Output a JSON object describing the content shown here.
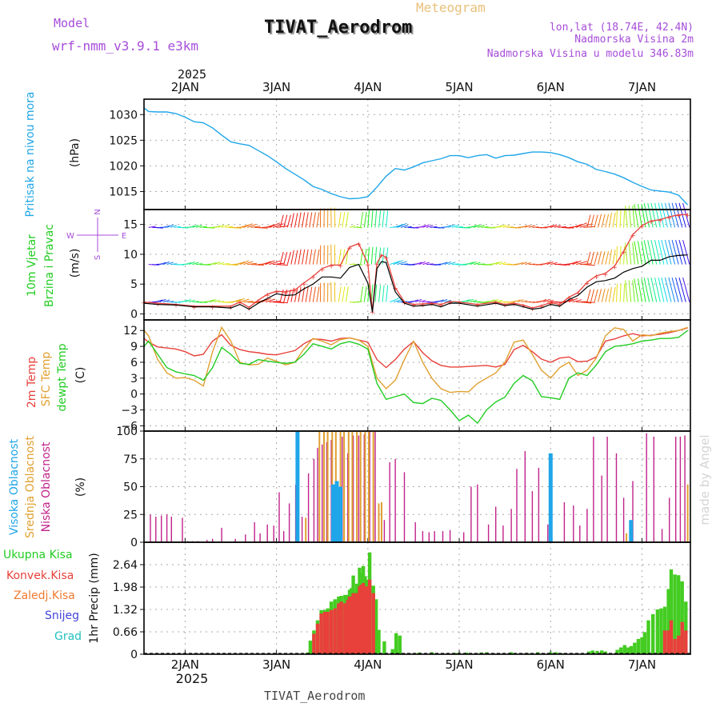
{
  "header": {
    "model_label": "Model",
    "model_name": "wrf-nmm_v3.9.1  e3km",
    "meteogram": "Meteogram",
    "station": "TIVAT_Aerodrom",
    "lonlat": "lon,lat (18.74E, 42.4N)",
    "elevation": "Nadmorska Visina 2m",
    "model_elevation": "Nadmorska Visina u modelu 346.83m",
    "footer_station": "TIVAT_Aerodrom",
    "watermark": "made by Angel"
  },
  "colors": {
    "pressure": "#1fa6e8",
    "temp2m": "#e8403a",
    "sfc": "#e0a030",
    "dew": "#22cc22",
    "cloud_high": "#1fa6e8",
    "cloud_mid": "#e0a030",
    "cloud_low": "#c0238a",
    "precip_total": "#44cc22",
    "precip_conv": "#e8403a",
    "wind_speed": "#000000",
    "purple": "#a64dd9"
  },
  "time_axis": {
    "year": "2025",
    "ticks": [
      "2JAN",
      "3JAN",
      "4JAN",
      "5JAN",
      "6JAN",
      "7JAN"
    ]
  },
  "chart_data": [
    {
      "type": "line",
      "title": "Pritisak na nivou mora",
      "ylabel": "(hPa)",
      "ylim": [
        1011.5,
        1033.0
      ],
      "yticks": [
        1015,
        1020,
        1025,
        1030
      ],
      "x_days": [
        1.55,
        1.6,
        1.7,
        1.8,
        1.9,
        2.0,
        2.1,
        2.2,
        2.3,
        2.4,
        2.5,
        2.6,
        2.7,
        2.8,
        2.9,
        3.0,
        3.1,
        3.2,
        3.3,
        3.4,
        3.5,
        3.6,
        3.7,
        3.8,
        3.9,
        4.0,
        4.1,
        4.2,
        4.3,
        4.4,
        4.5,
        4.6,
        4.7,
        4.8,
        4.9,
        5.0,
        5.1,
        5.2,
        5.3,
        5.4,
        5.5,
        5.6,
        5.7,
        5.8,
        5.9,
        6.0,
        6.1,
        6.2,
        6.3,
        6.4,
        6.5,
        6.6,
        6.7,
        6.8,
        6.9,
        7.0,
        7.1,
        7.2,
        7.3,
        7.4,
        7.5
      ],
      "values": [
        1031.3,
        1030.6,
        1030.5,
        1030.5,
        1030.2,
        1029.5,
        1028.6,
        1028.4,
        1027.4,
        1026.0,
        1024.7,
        1024.3,
        1024.0,
        1023.0,
        1022.0,
        1020.8,
        1019.5,
        1018.4,
        1017.3,
        1016.0,
        1015.4,
        1014.6,
        1014.0,
        1013.6,
        1013.7,
        1014.0,
        1015.9,
        1018.0,
        1019.5,
        1019.2,
        1019.8,
        1020.6,
        1021.0,
        1021.4,
        1022.0,
        1022.0,
        1021.6,
        1022.0,
        1022.2,
        1021.5,
        1022.0,
        1022.1,
        1022.4,
        1022.7,
        1022.7,
        1022.6,
        1022.2,
        1021.6,
        1020.8,
        1020.3,
        1019.3,
        1018.9,
        1018.4,
        1017.7,
        1016.8,
        1016.0,
        1015.3,
        1015.1,
        1014.9,
        1014.3,
        1012.4
      ]
    },
    {
      "type": "line",
      "title": "10m Vjetar",
      "subtitle": "Brzina i Pravac",
      "ylabel": "(m/s)",
      "ylim": [
        -1,
        17.5
      ],
      "yticks": [
        0,
        5,
        10,
        15
      ],
      "compass": {
        "n": "N",
        "s": "S",
        "e": "E",
        "w": "W"
      },
      "x_days": [
        1.55,
        1.7,
        1.9,
        2.1,
        2.3,
        2.5,
        2.6,
        2.7,
        2.8,
        2.9,
        3.0,
        3.1,
        3.2,
        3.3,
        3.4,
        3.5,
        3.6,
        3.7,
        3.8,
        3.9,
        4.0,
        4.05,
        4.1,
        4.15,
        4.2,
        4.3,
        4.4,
        4.5,
        4.6,
        4.7,
        4.8,
        4.9,
        5.0,
        5.2,
        5.4,
        5.5,
        5.6,
        5.7,
        5.8,
        5.9,
        6.0,
        6.1,
        6.2,
        6.3,
        6.4,
        6.5,
        6.6,
        6.7,
        6.8,
        6.9,
        7.0,
        7.1,
        7.2,
        7.3,
        7.4,
        7.5
      ],
      "speed": [
        1.8,
        1.6,
        1.5,
        1.2,
        1.2,
        1.0,
        1.6,
        0.8,
        1.8,
        2.6,
        3.4,
        3.1,
        3.2,
        4.2,
        5.0,
        6.2,
        6.2,
        6.0,
        7.8,
        8.3,
        5.2,
        0.3,
        7.6,
        8.8,
        8.6,
        3.7,
        1.8,
        1.3,
        1.4,
        1.6,
        1.2,
        1.8,
        1.8,
        1.3,
        1.8,
        1.4,
        1.6,
        1.2,
        0.8,
        1.0,
        1.6,
        1.3,
        2.4,
        3.1,
        4.5,
        5.4,
        5.6,
        6.0,
        7.0,
        7.6,
        8.0,
        9.0,
        9.0,
        9.6,
        9.8,
        9.9
      ],
      "gust": [
        2.0,
        1.8,
        1.6,
        1.3,
        1.3,
        1.3,
        2.0,
        1.1,
        2.3,
        3.3,
        3.8,
        3.7,
        4.0,
        5.2,
        6.3,
        7.6,
        8.2,
        8.2,
        11.2,
        11.8,
        8.4,
        0.5,
        8.5,
        9.9,
        9.5,
        4.4,
        2.0,
        1.6,
        1.7,
        1.8,
        1.6,
        2.1,
        2.0,
        1.6,
        2.0,
        1.6,
        1.8,
        1.5,
        1.0,
        1.4,
        1.9,
        1.6,
        2.8,
        3.6,
        5.3,
        6.4,
        6.8,
        8.0,
        10.5,
        13.3,
        14.8,
        15.6,
        15.8,
        16.3,
        16.6,
        16.7
      ]
    },
    {
      "type": "line",
      "title": "2m Temp / SFC Temp / dewpt Temp",
      "ylabel": "(C)",
      "ylim": [
        -7,
        14
      ],
      "yticks": [
        -6,
        -3,
        0,
        3,
        6,
        9,
        12
      ],
      "x_days": [
        1.55,
        1.6,
        1.7,
        1.8,
        1.9,
        2.0,
        2.1,
        2.2,
        2.3,
        2.4,
        2.5,
        2.6,
        2.7,
        2.8,
        2.9,
        3.0,
        3.1,
        3.2,
        3.3,
        3.4,
        3.5,
        3.6,
        3.7,
        3.8,
        3.9,
        4.0,
        4.1,
        4.2,
        4.3,
        4.4,
        4.5,
        4.6,
        4.7,
        4.8,
        4.9,
        5.0,
        5.1,
        5.2,
        5.3,
        5.4,
        5.5,
        5.6,
        5.7,
        5.8,
        5.9,
        6.0,
        6.1,
        6.2,
        6.3,
        6.4,
        6.5,
        6.6,
        6.7,
        6.8,
        6.9,
        7.0,
        7.1,
        7.2,
        7.3,
        7.4,
        7.5
      ],
      "series": [
        {
          "name": "2m Temp",
          "values": [
            10.5,
            9.8,
            8.9,
            8.7,
            8.5,
            8.0,
            7.2,
            7.5,
            10.0,
            11.2,
            9.2,
            8.4,
            8.0,
            7.8,
            7.5,
            7.4,
            7.8,
            8.2,
            9.5,
            10.4,
            10.3,
            10.0,
            10.5,
            10.6,
            10.2,
            9.8,
            6.5,
            5.0,
            6.5,
            8.5,
            9.9,
            7.8,
            6.3,
            5.4,
            5.1,
            5.1,
            5.2,
            5.3,
            5.4,
            5.1,
            5.6,
            8.4,
            9.2,
            8.0,
            6.6,
            6.0,
            6.8,
            7.0,
            6.1,
            6.2,
            7.0,
            10.0,
            10.4,
            11.0,
            11.4,
            11.0,
            11.1,
            11.3,
            11.6,
            12.0,
            12.5
          ]
        },
        {
          "name": "SFC Temp",
          "values": [
            12.0,
            11.0,
            6.5,
            4.0,
            3.0,
            3.1,
            2.6,
            1.5,
            8.0,
            12.6,
            10.0,
            6.0,
            5.5,
            5.6,
            6.8,
            6.2,
            5.5,
            6.0,
            8.5,
            10.5,
            10.0,
            9.3,
            10.3,
            10.6,
            10.2,
            9.0,
            3.0,
            1.0,
            2.6,
            6.5,
            10.0,
            6.0,
            3.0,
            1.0,
            0.3,
            0.5,
            0.4,
            2.0,
            3.0,
            4.0,
            6.0,
            9.8,
            10.2,
            7.5,
            4.5,
            3.0,
            5.0,
            6.0,
            3.5,
            4.5,
            6.8,
            11.0,
            12.5,
            12.2,
            10.0,
            11.2,
            11.0,
            11.5,
            11.8,
            12.0,
            12.6
          ]
        },
        {
          "name": "dewpt Temp",
          "values": [
            9.0,
            10.0,
            7.5,
            5.0,
            4.2,
            3.8,
            3.5,
            2.6,
            5.0,
            8.8,
            7.5,
            5.8,
            5.6,
            6.5,
            6.2,
            6.0,
            5.8,
            6.0,
            7.5,
            9.5,
            9.0,
            8.5,
            9.5,
            9.9,
            9.4,
            8.5,
            2.0,
            -1.0,
            -0.5,
            0.0,
            -1.6,
            -1.8,
            -0.8,
            -1.2,
            -3.0,
            -5.0,
            -4.0,
            -5.5,
            -3.0,
            -1.5,
            -0.6,
            2.0,
            3.5,
            2.5,
            -0.5,
            -0.7,
            -1.0,
            3.0,
            4.0,
            3.5,
            5.5,
            8.0,
            9.0,
            9.2,
            9.5,
            10.0,
            10.2,
            10.5,
            10.5,
            10.7,
            12.0
          ]
        }
      ]
    },
    {
      "type": "bar",
      "title": "Visoka Oblacnost / Srednja Oblacnost / Niska Oblacnost",
      "ylabel": "(%)",
      "ylim": [
        0,
        100
      ],
      "yticks": [
        0,
        25,
        50,
        75,
        100
      ],
      "series": [
        {
          "name": "Visoka Oblacnost",
          "x_days": [
            3.23,
            3.62,
            3.66,
            3.7,
            6.0,
            6.88
          ],
          "values": [
            100,
            52,
            55,
            50,
            80,
            20
          ]
        },
        {
          "name": "Srednja Oblacnost",
          "x_days": [
            3.32,
            3.47,
            3.52,
            3.56,
            3.61,
            3.65,
            3.7,
            3.74,
            3.79,
            3.83,
            3.88,
            3.92,
            3.97,
            4.01,
            4.06,
            4.12,
            4.15,
            6.83,
            7.5
          ],
          "values": [
            22,
            100,
            100,
            100,
            100,
            100,
            100,
            100,
            100,
            100,
            100,
            100,
            100,
            100,
            100,
            35,
            36,
            8,
            52
          ]
        },
        {
          "name": "Niska Oblacnost",
          "x_days": [
            1.62,
            1.68,
            1.74,
            1.8,
            1.85,
            1.97,
            2.03,
            2.08,
            2.14,
            2.24,
            2.3,
            2.4,
            2.55,
            2.66,
            2.76,
            2.82,
            2.9,
            2.97,
            3.03,
            3.08,
            3.14,
            3.21,
            3.28,
            3.35,
            3.41,
            3.45,
            3.5,
            3.55,
            3.6,
            3.65,
            3.72,
            3.78,
            3.84,
            3.9,
            3.96,
            4.02,
            4.08,
            4.18,
            4.24,
            4.3,
            4.4,
            4.52,
            4.6,
            4.67,
            4.73,
            4.82,
            4.9,
            5.05,
            5.13,
            5.2,
            5.32,
            5.4,
            5.48,
            5.57,
            5.63,
            5.72,
            5.8,
            5.87,
            5.97,
            6.08,
            6.15,
            6.25,
            6.32,
            6.4,
            6.47,
            6.56,
            6.62,
            6.72,
            6.8,
            6.9,
            7.05,
            7.13,
            7.22,
            7.3,
            7.37,
            7.42,
            7.47
          ],
          "values": [
            25,
            23,
            24,
            25,
            23,
            22,
            1,
            1,
            1,
            2,
            3,
            13,
            3,
            7,
            18,
            8,
            16,
            15,
            45,
            10,
            35,
            52,
            23,
            62,
            75,
            85,
            88,
            90,
            92,
            70,
            95,
            80,
            96,
            96,
            97,
            100,
            100,
            20,
            72,
            75,
            63,
            18,
            10,
            9,
            10,
            10,
            11,
            9,
            50,
            52,
            16,
            32,
            15,
            30,
            66,
            82,
            46,
            67,
            16,
            0,
            36,
            33,
            15,
            30,
            95,
            60,
            95,
            80,
            40,
            55,
            98,
            95,
            12,
            40,
            95,
            95,
            96
          ]
        }
      ]
    },
    {
      "type": "bar",
      "title": "1hr Precip",
      "ylabel": "1hr Precip (mm)",
      "ylim": [
        0,
        3.3
      ],
      "yticks": [
        0,
        0.66,
        1.32,
        1.98,
        2.64
      ],
      "tick_labels": [
        "0",
        "0.66",
        "1.32",
        "1.98",
        "2.64"
      ],
      "legend": [
        "Ukupna Kisa",
        "Konvek.Kisa",
        "Zaledj.Kisa",
        "Snijeg",
        "Grad"
      ],
      "series": [
        {
          "name": "Ukupna Kisa",
          "x_days": [
            3.34,
            3.37,
            3.41,
            3.45,
            3.49,
            3.53,
            3.56,
            3.6,
            3.64,
            3.68,
            3.71,
            3.75,
            3.78,
            3.8,
            3.82,
            3.84,
            3.86,
            3.88,
            3.91,
            3.93,
            3.95,
            3.97,
            4.0,
            4.02,
            4.06,
            4.09,
            4.12,
            4.18,
            4.27,
            4.31,
            4.35,
            4.56,
            4.7,
            4.96,
            5.08,
            5.24,
            5.3,
            5.57,
            5.74,
            5.86,
            6.0,
            6.06,
            6.13,
            6.24,
            6.42,
            6.46,
            6.51,
            6.56,
            6.6,
            6.73,
            6.77,
            6.81,
            6.85,
            6.88,
            6.92,
            6.96,
            7.0,
            7.03,
            7.07,
            7.12,
            7.17,
            7.21,
            7.25,
            7.29,
            7.32,
            7.36,
            7.4,
            7.44,
            7.48
          ],
          "values": [
            0.05,
            0.4,
            0.7,
            1.0,
            1.3,
            1.3,
            1.35,
            1.55,
            1.62,
            1.7,
            1.72,
            1.75,
            1.75,
            1.9,
            1.95,
            2.32,
            1.85,
            2.08,
            2.55,
            2.4,
            2.6,
            2.3,
            2.2,
            3.0,
            2.02,
            1.62,
            0.72,
            0.38,
            0.15,
            0.62,
            0.55,
            0.05,
            0.06,
            0.04,
            0.05,
            0.05,
            0.06,
            0.06,
            0.04,
            0.06,
            0.06,
            0.06,
            0.03,
            0.02,
            0.08,
            0.11,
            0.1,
            0.11,
            0.08,
            0.13,
            0.2,
            0.27,
            0.2,
            0.24,
            0.34,
            0.45,
            0.5,
            0.65,
            1.0,
            1.18,
            1.32,
            1.35,
            1.4,
            1.92,
            2.5,
            2.35,
            2.33,
            2.15,
            1.55
          ]
        },
        {
          "name": "Konvek.Kisa",
          "x_days": [
            3.41,
            3.45,
            3.49,
            3.53,
            3.56,
            3.6,
            3.64,
            3.68,
            3.71,
            3.75,
            3.78,
            3.8,
            3.82,
            3.84,
            3.86,
            3.88,
            3.91,
            3.93,
            3.95,
            3.97,
            4.0,
            4.02,
            4.06,
            7.25,
            7.29,
            7.32,
            7.36,
            7.4,
            7.44,
            7.48
          ],
          "values": [
            0.6,
            0.9,
            1.2,
            1.25,
            1.25,
            1.3,
            1.35,
            1.5,
            1.55,
            1.5,
            1.6,
            1.7,
            1.7,
            1.8,
            1.62,
            1.8,
            2.0,
            2.05,
            2.1,
            2.0,
            2.0,
            2.2,
            1.8,
            0.7,
            0.7,
            1.0,
            0.45,
            0.55,
            0.95,
            0.7
          ]
        }
      ]
    }
  ]
}
